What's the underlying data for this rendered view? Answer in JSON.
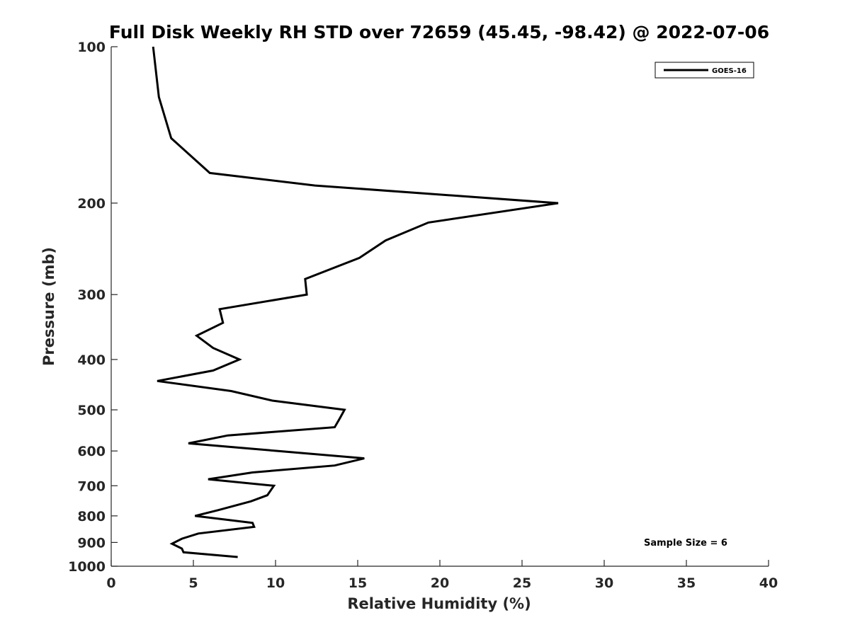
{
  "chart_data": {
    "type": "line",
    "title": "Full Disk Weekly RH STD over 72659 (45.45, -98.42) @ 2022-07-06",
    "xlabel": "Relative Humidity (%)",
    "ylabel": "Pressure (mb)",
    "xlim": [
      0,
      40
    ],
    "ylim": [
      100,
      1000
    ],
    "yscale": "log",
    "yreversed": true,
    "grid": false,
    "legend_position": "top-right",
    "x_ticks": [
      "0",
      "5",
      "10",
      "15",
      "20",
      "25",
      "30",
      "35",
      "40"
    ],
    "y_ticks": [
      "100",
      "200",
      "300",
      "400",
      "500",
      "600",
      "700",
      "800",
      "900",
      "1000"
    ],
    "annotation": "Sample Size = 6",
    "series": [
      {
        "name": "GOES-16",
        "color": "#000000",
        "points": [
          [
            2.55,
            100
          ],
          [
            2.9,
            125
          ],
          [
            3.65,
            150
          ],
          [
            6.0,
            175
          ],
          [
            12.4,
            185
          ],
          [
            27.2,
            200
          ],
          [
            19.3,
            218
          ],
          [
            16.7,
            236
          ],
          [
            15.1,
            255
          ],
          [
            11.8,
            280
          ],
          [
            11.9,
            300
          ],
          [
            6.6,
            320
          ],
          [
            6.8,
            340
          ],
          [
            5.2,
            360
          ],
          [
            6.2,
            380
          ],
          [
            7.8,
            400
          ],
          [
            6.2,
            420
          ],
          [
            2.8,
            440
          ],
          [
            7.3,
            460
          ],
          [
            9.8,
            480
          ],
          [
            14.2,
            500
          ],
          [
            13.9,
            520
          ],
          [
            13.6,
            540
          ],
          [
            7.1,
            560
          ],
          [
            4.7,
            580
          ],
          [
            15.4,
            620
          ],
          [
            13.6,
            640
          ],
          [
            8.6,
            660
          ],
          [
            5.9,
            680
          ],
          [
            9.9,
            700
          ],
          [
            9.5,
            730
          ],
          [
            8.5,
            750
          ],
          [
            6.5,
            780
          ],
          [
            5.1,
            800
          ],
          [
            8.6,
            825
          ],
          [
            8.7,
            840
          ],
          [
            5.3,
            865
          ],
          [
            4.3,
            885
          ],
          [
            3.7,
            905
          ],
          [
            4.3,
            925
          ],
          [
            4.4,
            940
          ],
          [
            7.7,
            960
          ]
        ]
      }
    ]
  }
}
